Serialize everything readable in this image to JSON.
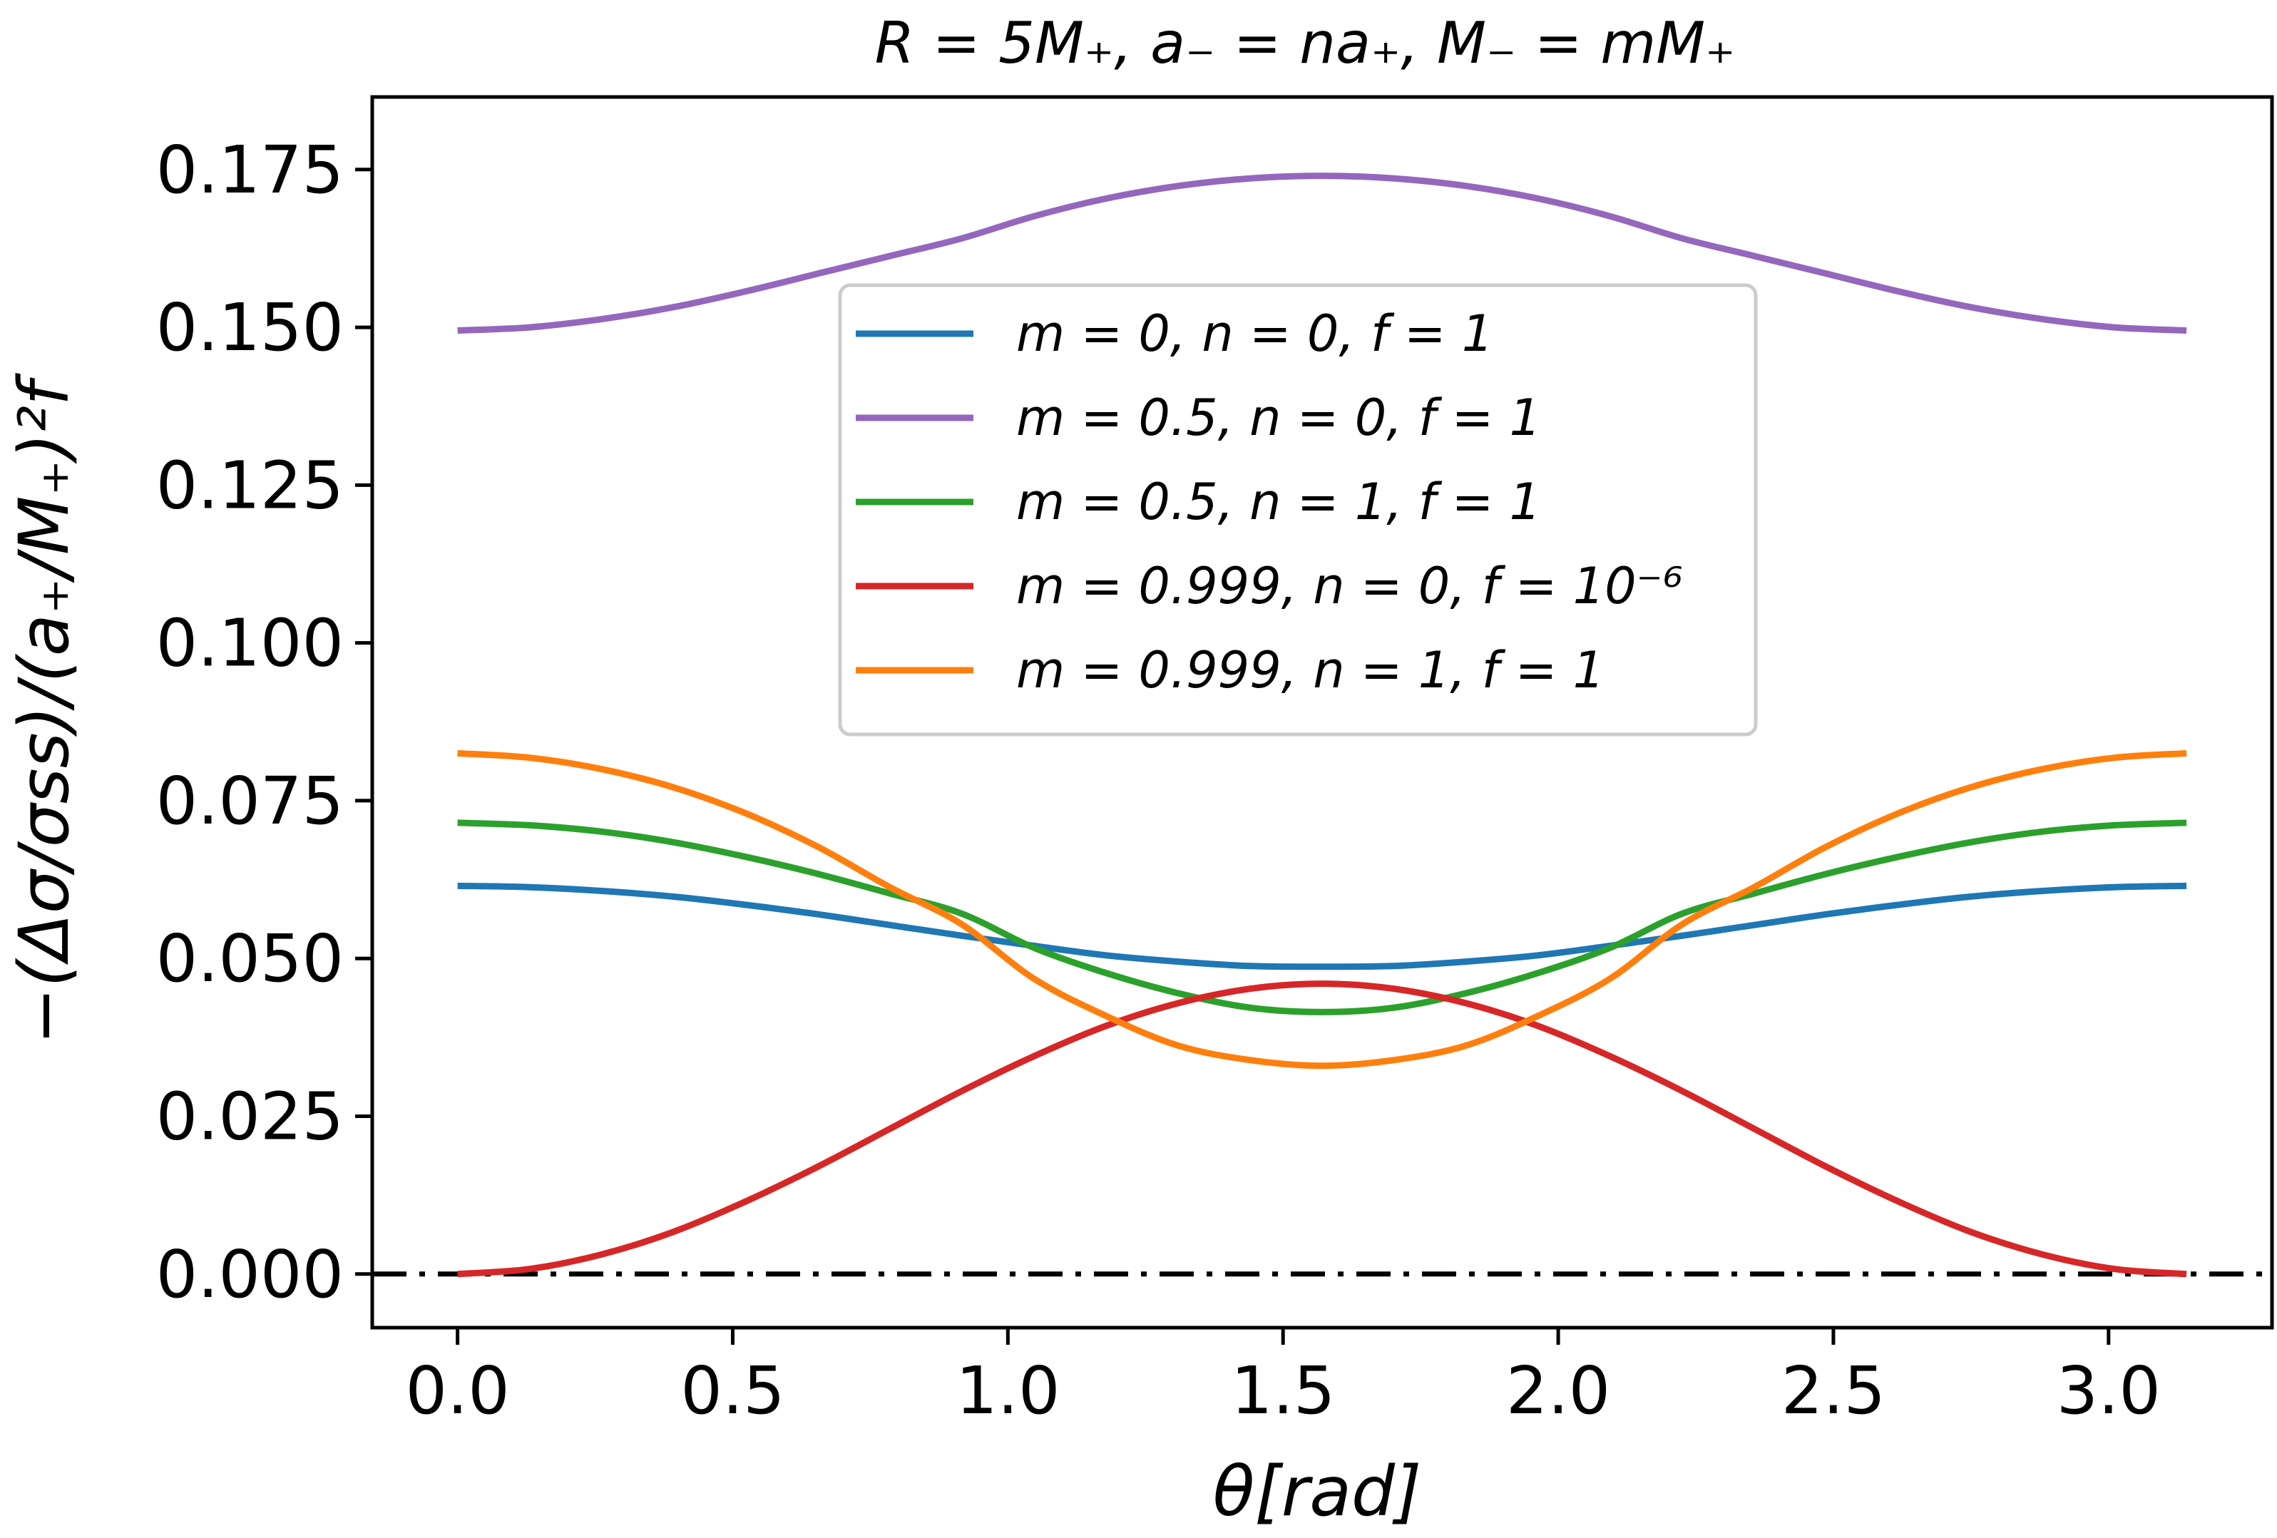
{
  "chart_data": {
    "type": "line",
    "title": "R = 5M₊, a₋ = na₊, M₋ = mM₊",
    "xlabel": "θ[rad]",
    "ylabel": "−(Δσ/σss)/(a₊/M₊)²f",
    "xlim": [
      -0.155,
      3.297
    ],
    "ylim": [
      -0.0085,
      0.1865
    ],
    "grid": false,
    "legend_position": "upper-center",
    "x_ticks": [
      0.0,
      0.5,
      1.0,
      1.5,
      2.0,
      2.5,
      3.0
    ],
    "x_tick_labels": [
      "0.0",
      "0.5",
      "1.0",
      "1.5",
      "2.0",
      "2.5",
      "3.0"
    ],
    "y_ticks": [
      0.0,
      0.025,
      0.05,
      0.075,
      0.1,
      0.125,
      0.15,
      0.175
    ],
    "y_tick_labels": [
      "0.000",
      "0.025",
      "0.050",
      "0.075",
      "0.100",
      "0.125",
      "0.150",
      "0.175"
    ],
    "x": [
      0.0,
      0.1309,
      0.2618,
      0.3927,
      0.5236,
      0.6545,
      0.7854,
      0.9163,
      1.0472,
      1.1781,
      1.309,
      1.4399,
      1.5708,
      1.7017,
      1.8326,
      1.9635,
      2.0944,
      2.2253,
      2.3562,
      2.4871,
      2.618,
      2.7489,
      2.8798,
      3.0107,
      3.1416
    ],
    "series": [
      {
        "name": "m = 0, n = 0, f = 1",
        "color": "#1f77b4",
        "values": [
          0.0615,
          0.0613,
          0.0607,
          0.0598,
          0.0585,
          0.057,
          0.0553,
          0.0536,
          0.052,
          0.0505,
          0.0495,
          0.0488,
          0.0487,
          0.0488,
          0.0495,
          0.0505,
          0.052,
          0.0536,
          0.0553,
          0.057,
          0.0585,
          0.0598,
          0.0607,
          0.0613,
          0.0615
        ]
      },
      {
        "name": "m = 0.5, n = 0, f = 1",
        "color": "#9467bd",
        "values": [
          0.1495,
          0.15,
          0.1513,
          0.1532,
          0.1557,
          0.1585,
          0.1613,
          0.1641,
          0.1676,
          0.1704,
          0.1724,
          0.1736,
          0.174,
          0.1736,
          0.1724,
          0.1704,
          0.1676,
          0.1641,
          0.1613,
          0.1585,
          0.1557,
          0.1532,
          0.1513,
          0.15,
          0.1495
        ]
      },
      {
        "name": "m = 0.5, n = 1, f = 1",
        "color": "#2ca02c",
        "values": [
          0.0715,
          0.0711,
          0.0701,
          0.0684,
          0.0661,
          0.0634,
          0.0603,
          0.0571,
          0.0517,
          0.0477,
          0.0445,
          0.0422,
          0.0415,
          0.0422,
          0.0445,
          0.0477,
          0.0517,
          0.0571,
          0.0603,
          0.0634,
          0.0661,
          0.0684,
          0.0701,
          0.0711,
          0.0715
        ]
      },
      {
        "name": "m = 0.999, n = 0, f = 10⁻⁶",
        "color": "#d62728",
        "values": [
          0.0,
          0.0008,
          0.0031,
          0.0067,
          0.0115,
          0.017,
          0.023,
          0.029,
          0.0345,
          0.0393,
          0.0429,
          0.0452,
          0.046,
          0.0452,
          0.0429,
          0.0393,
          0.0345,
          0.029,
          0.023,
          0.017,
          0.0115,
          0.0067,
          0.0031,
          0.0008,
          0.0
        ]
      },
      {
        "name": "m = 0.999, n = 1, f = 1",
        "color": "#ff7f0e",
        "values": [
          0.0825,
          0.0818,
          0.08,
          0.0771,
          0.073,
          0.0677,
          0.0613,
          0.0554,
          0.0468,
          0.0409,
          0.0362,
          0.0339,
          0.033,
          0.0339,
          0.0362,
          0.0409,
          0.0468,
          0.0554,
          0.0613,
          0.0677,
          0.073,
          0.0771,
          0.08,
          0.0818,
          0.0825
        ]
      }
    ],
    "reference_line": {
      "y": 0.0,
      "style": "dash-dot",
      "color": "#000000"
    }
  }
}
